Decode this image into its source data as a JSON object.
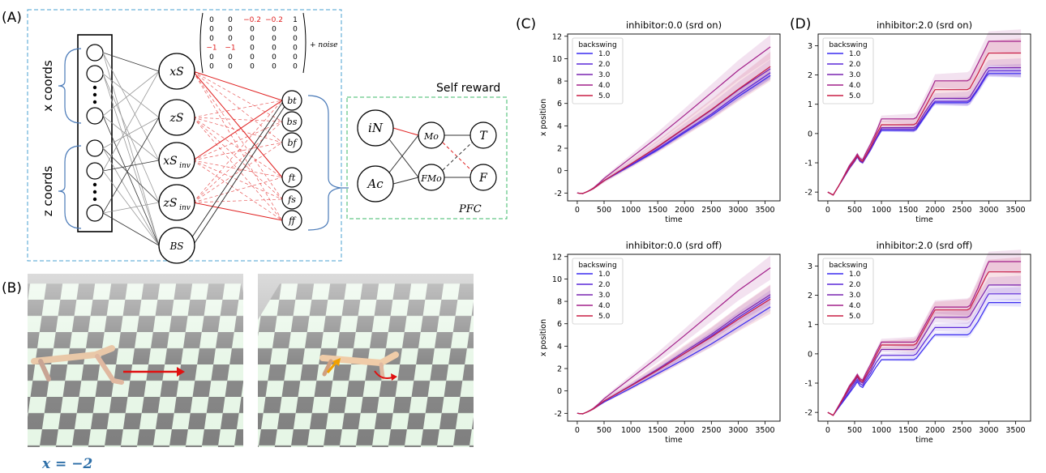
{
  "panel_labels": {
    "a": "(A)",
    "b": "(B)",
    "c": "(C)",
    "d": "(D)"
  },
  "network": {
    "x_coords_label": "x coords",
    "z_coords_label": "z coords",
    "matrix_rows": [
      [
        "0",
        "0",
        "−0.2",
        "−0.2",
        "1"
      ],
      [
        "0",
        "0",
        "0",
        "0",
        "0"
      ],
      [
        "0",
        "0",
        "0",
        "0",
        "0"
      ],
      [
        "−1",
        "−1",
        "0",
        "0",
        "0"
      ],
      [
        "0",
        "0",
        "0",
        "0",
        "0"
      ],
      [
        "0",
        "0",
        "0",
        "0",
        "0"
      ]
    ],
    "noise_label": "+ noise",
    "self_reward_label": "Self reward",
    "pfc_label": "PFC",
    "nodes": {
      "xS": "xS",
      "zS": "zS",
      "xSinv": "xS",
      "zSinv": "zS",
      "inv_sub": "inv",
      "BS": "BS",
      "bt": "bt",
      "bs": "bs",
      "bf": "bf",
      "ft": "ft",
      "fs": "fs",
      "ff": "ff",
      "iN": "iN",
      "Ac": "Ac",
      "Mo": "Mo",
      "FMo": "FMo",
      "T": "T",
      "F": "F"
    }
  },
  "sim": {
    "position_label": "x = −2"
  },
  "legend_title": "backswing",
  "series_names": [
    "1.0",
    "2.0",
    "3.0",
    "4.0",
    "5.0"
  ],
  "series_colors": [
    "#3a2cf0",
    "#5a28d8",
    "#7a25b0",
    "#a2208a",
    "#c81e45"
  ],
  "chart_data": [
    {
      "type": "line",
      "title": "inhibitor:0.0 (srd on)",
      "xlabel": "time",
      "ylabel": "x position",
      "xlim": [
        -180,
        3780
      ],
      "ylim": [
        -2.7,
        12.2
      ],
      "xticks": [
        0,
        500,
        1000,
        1500,
        2000,
        2500,
        3000,
        3500
      ],
      "yticks": [
        -2,
        0,
        2,
        4,
        6,
        8,
        10,
        12
      ],
      "x": [
        0,
        100,
        200,
        300,
        400,
        500,
        1000,
        1500,
        2000,
        2500,
        3000,
        3600
      ],
      "legend": "top-left",
      "series": [
        {
          "name": "1.0",
          "values": [
            -2.0,
            -2.05,
            -1.85,
            -1.6,
            -1.25,
            -0.9,
            0.45,
            1.85,
            3.4,
            4.9,
            6.6,
            8.5
          ]
        },
        {
          "name": "2.0",
          "values": [
            -2.0,
            -2.05,
            -1.85,
            -1.6,
            -1.25,
            -0.9,
            0.5,
            1.95,
            3.5,
            5.05,
            6.8,
            8.75
          ]
        },
        {
          "name": "3.0",
          "values": [
            -2.0,
            -2.05,
            -1.85,
            -1.6,
            -1.25,
            -0.9,
            0.6,
            2.1,
            3.75,
            5.4,
            7.2,
            9.1
          ]
        },
        {
          "name": "4.0",
          "values": [
            -2.0,
            -2.05,
            -1.85,
            -1.55,
            -1.15,
            -0.7,
            1.15,
            3.0,
            4.95,
            6.95,
            8.95,
            11.05
          ]
        },
        {
          "name": "5.0",
          "values": [
            -2.0,
            -2.05,
            -1.85,
            -1.6,
            -1.25,
            -0.9,
            0.6,
            2.15,
            3.8,
            5.45,
            7.25,
            9.3
          ]
        }
      ]
    },
    {
      "type": "line",
      "title": "inhibitor:2.0 (srd on)",
      "xlabel": "time",
      "ylabel": "",
      "xlim": [
        -180,
        3780
      ],
      "ylim": [
        -2.3,
        3.4
      ],
      "xticks": [
        0,
        500,
        1000,
        1500,
        2000,
        2500,
        3000,
        3500
      ],
      "yticks": [
        -2,
        -1,
        0,
        1,
        2,
        3
      ],
      "x": [
        0,
        100,
        200,
        300,
        400,
        500,
        550,
        600,
        650,
        700,
        800,
        900,
        1000,
        1050,
        1600,
        1650,
        1800,
        1950,
        2000,
        2050,
        2600,
        2650,
        2800,
        2950,
        3000,
        3050,
        3600
      ],
      "legend": "top-left",
      "series": [
        {
          "name": "1.0",
          "values": [
            -2.0,
            -2.1,
            -1.8,
            -1.5,
            -1.2,
            -0.95,
            -0.8,
            -0.95,
            -1.0,
            -0.85,
            -0.55,
            -0.2,
            0.1,
            0.1,
            0.1,
            0.15,
            0.55,
            0.95,
            1.05,
            1.05,
            1.05,
            1.1,
            1.5,
            1.95,
            2.05,
            2.05,
            2.05
          ]
        },
        {
          "name": "2.0",
          "values": [
            -2.0,
            -2.1,
            -1.8,
            -1.5,
            -1.2,
            -0.95,
            -0.8,
            -0.95,
            -1.0,
            -0.85,
            -0.55,
            -0.2,
            0.15,
            0.15,
            0.15,
            0.2,
            0.6,
            1.0,
            1.1,
            1.1,
            1.1,
            1.15,
            1.55,
            2.0,
            2.15,
            2.15,
            2.15
          ]
        },
        {
          "name": "3.0",
          "values": [
            -2.0,
            -2.1,
            -1.8,
            -1.5,
            -1.2,
            -0.95,
            -0.78,
            -0.92,
            -0.98,
            -0.82,
            -0.5,
            -0.15,
            0.2,
            0.2,
            0.2,
            0.25,
            0.7,
            1.1,
            1.2,
            1.2,
            1.2,
            1.25,
            1.7,
            2.15,
            2.25,
            2.25,
            2.25
          ]
        },
        {
          "name": "4.0",
          "values": [
            -2.0,
            -2.1,
            -1.8,
            -1.45,
            -1.1,
            -0.85,
            -0.7,
            -0.85,
            -0.9,
            -0.7,
            -0.35,
            0.05,
            0.5,
            0.5,
            0.5,
            0.55,
            1.05,
            1.6,
            1.8,
            1.8,
            1.8,
            1.85,
            2.4,
            2.95,
            3.15,
            3.15,
            3.15
          ]
        },
        {
          "name": "5.0",
          "values": [
            -2.0,
            -2.1,
            -1.8,
            -1.47,
            -1.15,
            -0.9,
            -0.75,
            -0.9,
            -0.95,
            -0.78,
            -0.45,
            -0.05,
            0.3,
            0.3,
            0.3,
            0.35,
            0.85,
            1.35,
            1.5,
            1.5,
            1.5,
            1.55,
            2.05,
            2.6,
            2.75,
            2.75,
            2.75
          ]
        }
      ]
    },
    {
      "type": "line",
      "title": "inhibitor:0.0 (srd off)",
      "xlabel": "time",
      "ylabel": "x position",
      "xlim": [
        -180,
        3780
      ],
      "ylim": [
        -2.7,
        12.2
      ],
      "xticks": [
        0,
        500,
        1000,
        1500,
        2000,
        2500,
        3000,
        3500
      ],
      "yticks": [
        -2,
        0,
        2,
        4,
        6,
        8,
        10,
        12
      ],
      "x": [
        0,
        100,
        200,
        300,
        400,
        500,
        1000,
        1500,
        2000,
        2500,
        3000,
        3600
      ],
      "legend": "top-left",
      "series": [
        {
          "name": "1.0",
          "values": [
            -2.0,
            -2.05,
            -1.85,
            -1.6,
            -1.3,
            -1.0,
            0.25,
            1.55,
            2.85,
            4.2,
            5.7,
            7.5
          ]
        },
        {
          "name": "2.0",
          "values": [
            -2.0,
            -2.05,
            -1.85,
            -1.6,
            -1.25,
            -0.9,
            0.45,
            1.85,
            3.35,
            4.9,
            6.55,
            8.4
          ]
        },
        {
          "name": "3.0",
          "values": [
            -2.0,
            -2.05,
            -1.85,
            -1.6,
            -1.25,
            -0.9,
            0.5,
            1.95,
            3.5,
            5.05,
            6.75,
            8.6
          ]
        },
        {
          "name": "4.0",
          "values": [
            -2.0,
            -2.05,
            -1.85,
            -1.55,
            -1.15,
            -0.7,
            1.15,
            3.0,
            4.95,
            6.95,
            8.95,
            11.0
          ]
        },
        {
          "name": "5.0",
          "values": [
            -2.0,
            -2.05,
            -1.85,
            -1.6,
            -1.25,
            -0.9,
            0.45,
            1.85,
            3.35,
            4.8,
            6.4,
            8.2
          ]
        }
      ]
    },
    {
      "type": "line",
      "title": "inhibitor:2.0 (srd off)",
      "xlabel": "time",
      "ylabel": "",
      "xlim": [
        -180,
        3780
      ],
      "ylim": [
        -2.3,
        3.4
      ],
      "xticks": [
        0,
        500,
        1000,
        1500,
        2000,
        2500,
        3000,
        3500
      ],
      "yticks": [
        -2,
        -1,
        0,
        1,
        2,
        3
      ],
      "x": [
        0,
        100,
        200,
        300,
        400,
        500,
        550,
        600,
        650,
        700,
        800,
        900,
        1000,
        1050,
        1600,
        1650,
        1800,
        1950,
        2000,
        2050,
        2600,
        2650,
        2800,
        2950,
        3000,
        3050,
        3600
      ],
      "legend": "top-left",
      "series": [
        {
          "name": "1.0",
          "values": [
            -2.0,
            -2.1,
            -1.85,
            -1.6,
            -1.35,
            -1.1,
            -0.95,
            -1.1,
            -1.15,
            -1.0,
            -0.75,
            -0.45,
            -0.2,
            -0.2,
            -0.2,
            -0.15,
            0.2,
            0.55,
            0.65,
            0.65,
            0.65,
            0.7,
            1.1,
            1.6,
            1.75,
            1.75,
            1.75
          ]
        },
        {
          "name": "2.0",
          "values": [
            -2.0,
            -2.1,
            -1.83,
            -1.55,
            -1.3,
            -1.02,
            -0.88,
            -1.02,
            -1.08,
            -0.92,
            -0.65,
            -0.3,
            -0.05,
            -0.05,
            -0.05,
            0.0,
            0.4,
            0.78,
            0.9,
            0.9,
            0.9,
            0.95,
            1.4,
            1.9,
            2.05,
            2.05,
            2.05
          ]
        },
        {
          "name": "3.0",
          "values": [
            -2.0,
            -2.1,
            -1.8,
            -1.5,
            -1.22,
            -0.95,
            -0.8,
            -0.95,
            -1.0,
            -0.84,
            -0.55,
            -0.15,
            0.15,
            0.15,
            0.15,
            0.2,
            0.65,
            1.1,
            1.25,
            1.25,
            1.25,
            1.3,
            1.75,
            2.2,
            2.35,
            2.35,
            2.35
          ]
        },
        {
          "name": "4.0",
          "values": [
            -2.0,
            -2.1,
            -1.78,
            -1.45,
            -1.1,
            -0.85,
            -0.7,
            -0.85,
            -0.9,
            -0.7,
            -0.35,
            0.05,
            0.4,
            0.4,
            0.4,
            0.45,
            0.95,
            1.45,
            1.6,
            1.6,
            1.6,
            1.65,
            2.25,
            2.95,
            3.15,
            3.15,
            3.15
          ]
        },
        {
          "name": "5.0",
          "values": [
            -2.0,
            -2.1,
            -1.8,
            -1.48,
            -1.15,
            -0.9,
            -0.75,
            -0.9,
            -0.95,
            -0.78,
            -0.45,
            -0.05,
            0.3,
            0.3,
            0.3,
            0.35,
            0.85,
            1.35,
            1.5,
            1.5,
            1.5,
            1.55,
            2.1,
            2.65,
            2.8,
            2.8,
            2.8
          ]
        }
      ]
    }
  ]
}
